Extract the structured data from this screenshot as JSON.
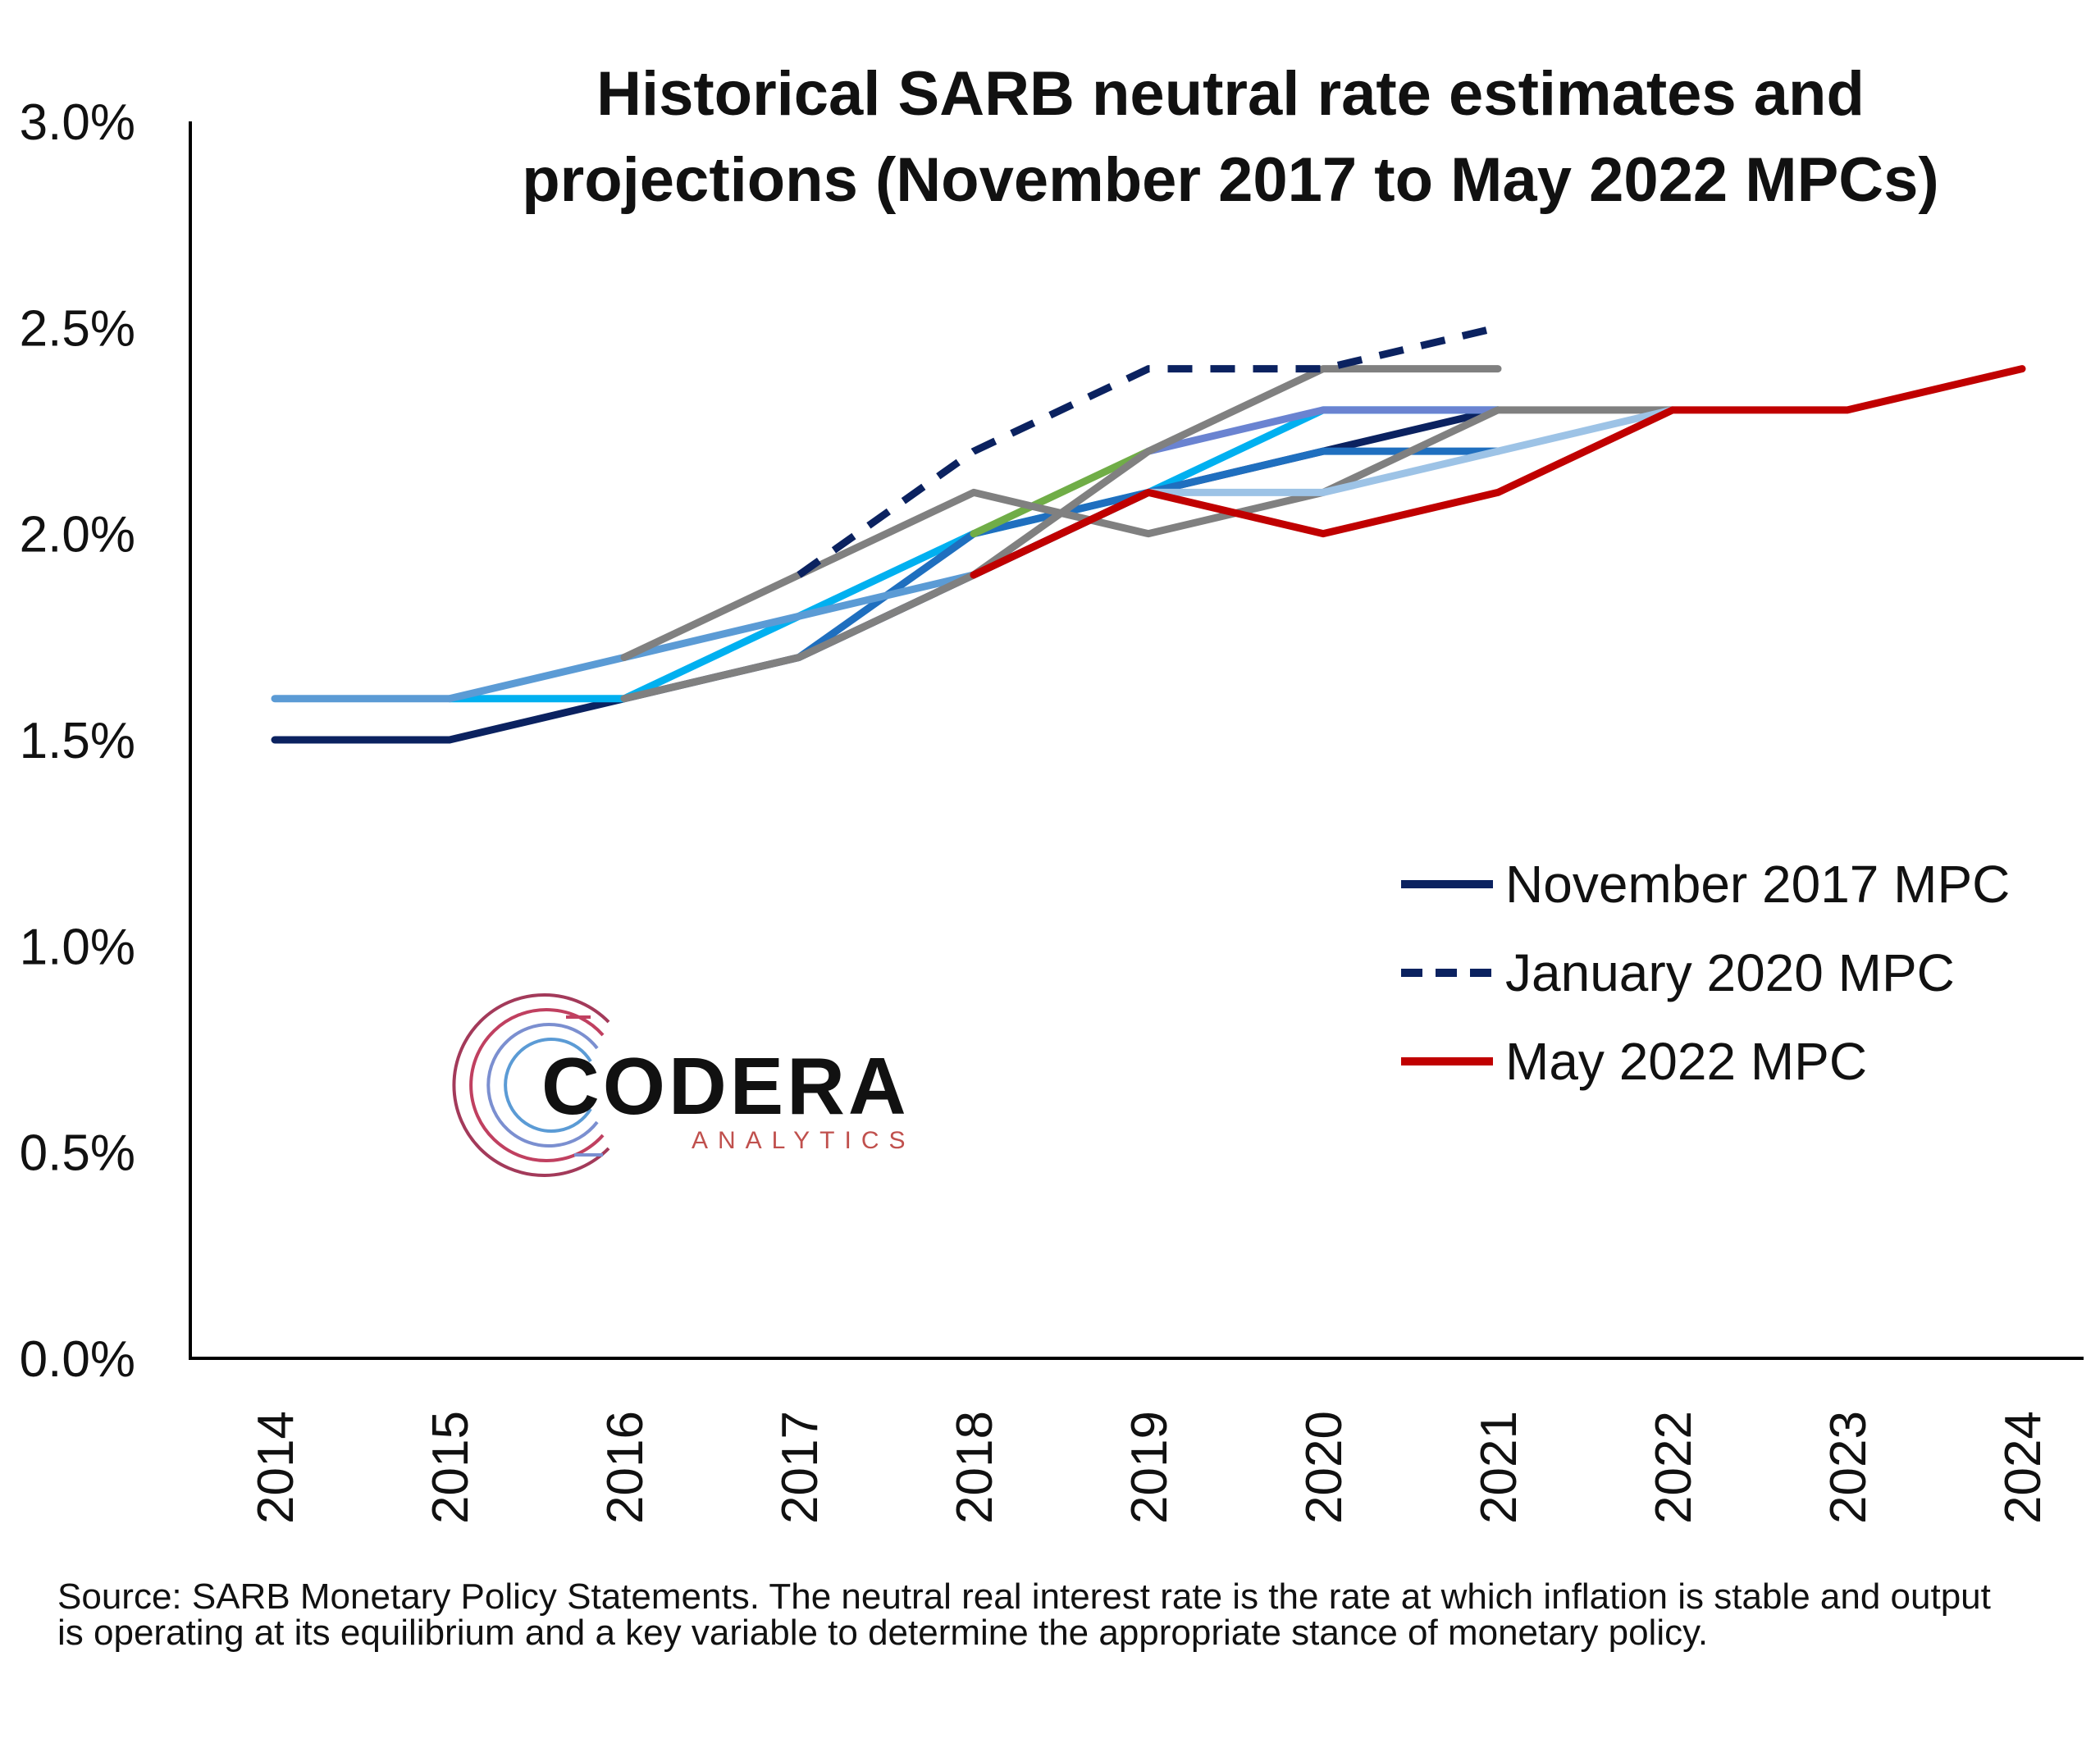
{
  "chart_data": {
    "type": "line",
    "title_lines": [
      "Historical SARB neutral rate estimates and",
      "projections (November 2017 to May 2022 MPCs)"
    ],
    "x": [
      "2014",
      "2015",
      "2016",
      "2017",
      "2018",
      "2019",
      "2020",
      "2021",
      "2022",
      "2023",
      "2024"
    ],
    "y_ticks": [
      "0.0%",
      "0.5%",
      "1.0%",
      "1.5%",
      "2.0%",
      "2.5%",
      "3.0%"
    ],
    "ylim": [
      0,
      3.0
    ],
    "y_unit": "%",
    "grid": false,
    "legend_position": "right-middle",
    "series": [
      {
        "name": "November 2017 MPC",
        "color": "#0b2260",
        "dash": "solid",
        "in_legend": true,
        "points": [
          [
            0,
            1.5
          ],
          [
            1,
            1.5
          ],
          [
            2,
            1.6
          ],
          [
            3,
            1.7
          ],
          [
            4,
            1.9
          ],
          [
            5,
            2.1
          ],
          [
            6,
            2.2
          ],
          [
            7,
            2.3
          ]
        ]
      },
      {
        "color": "#00b0f0",
        "dash": "solid",
        "in_legend": false,
        "points": [
          [
            1,
            1.6
          ],
          [
            2,
            1.6
          ],
          [
            3,
            1.8
          ],
          [
            4,
            2.0
          ],
          [
            5,
            2.1
          ],
          [
            6,
            2.3
          ],
          [
            7,
            2.3
          ]
        ]
      },
      {
        "color": "#1f6fbf",
        "dash": "solid",
        "in_legend": false,
        "points": [
          [
            3,
            1.7
          ],
          [
            4,
            2.0
          ],
          [
            5,
            2.1
          ],
          [
            6,
            2.2
          ],
          [
            7,
            2.2
          ]
        ]
      },
      {
        "color": "#5b9bd5",
        "dash": "solid",
        "in_legend": false,
        "points": [
          [
            0,
            1.6
          ],
          [
            1,
            1.6
          ],
          [
            2,
            1.7
          ],
          [
            3,
            1.8
          ],
          [
            4,
            1.9
          ]
        ]
      },
      {
        "color": "#70ad47",
        "dash": "solid",
        "in_legend": false,
        "points": [
          [
            4,
            2.0
          ],
          [
            5,
            2.2
          ]
        ]
      },
      {
        "color": "#6a83d1",
        "dash": "solid",
        "in_legend": false,
        "points": [
          [
            5,
            2.2
          ],
          [
            6,
            2.3
          ],
          [
            7,
            2.3
          ]
        ]
      },
      {
        "color": "#808080",
        "dash": "solid",
        "in_legend": false,
        "points": [
          [
            2,
            1.7
          ],
          [
            3,
            1.9
          ],
          [
            4,
            2.1
          ],
          [
            5,
            2.0
          ],
          [
            6,
            2.1
          ],
          [
            7,
            2.3
          ],
          [
            8,
            2.3
          ]
        ]
      },
      {
        "color": "#808080",
        "dash": "solid",
        "in_legend": false,
        "points": [
          [
            2,
            1.6
          ],
          [
            3,
            1.7
          ],
          [
            4,
            1.9
          ],
          [
            5,
            2.2
          ],
          [
            6,
            2.4
          ],
          [
            7,
            2.4
          ]
        ]
      },
      {
        "color": "#9dc3e6",
        "dash": "solid",
        "in_legend": false,
        "points": [
          [
            5,
            2.1
          ],
          [
            6,
            2.1
          ],
          [
            7,
            2.2
          ],
          [
            8,
            2.3
          ]
        ]
      },
      {
        "name": "January 2020 MPC",
        "color": "#0b2260",
        "dash": "dash",
        "in_legend": true,
        "points": [
          [
            3,
            1.9
          ],
          [
            4,
            2.2
          ],
          [
            5,
            2.4
          ],
          [
            6,
            2.4
          ],
          [
            7,
            2.5
          ]
        ]
      },
      {
        "name": "May 2022 MPC",
        "color": "#c00000",
        "dash": "solid",
        "in_legend": true,
        "points": [
          [
            4,
            1.9
          ],
          [
            5,
            2.1
          ],
          [
            6,
            2.0
          ],
          [
            7,
            2.1
          ],
          [
            8,
            2.3
          ],
          [
            9,
            2.3
          ],
          [
            10,
            2.4
          ]
        ]
      }
    ]
  },
  "logo": {
    "name": "CODERA",
    "sub": "ANALYTICS"
  },
  "source_note": "Source: SARB Monetary Policy Statements. The neutral real interest rate is the rate at which inflation is stable and output is operating at its equilibrium and a key variable to determine the appropriate stance of monetary policy."
}
